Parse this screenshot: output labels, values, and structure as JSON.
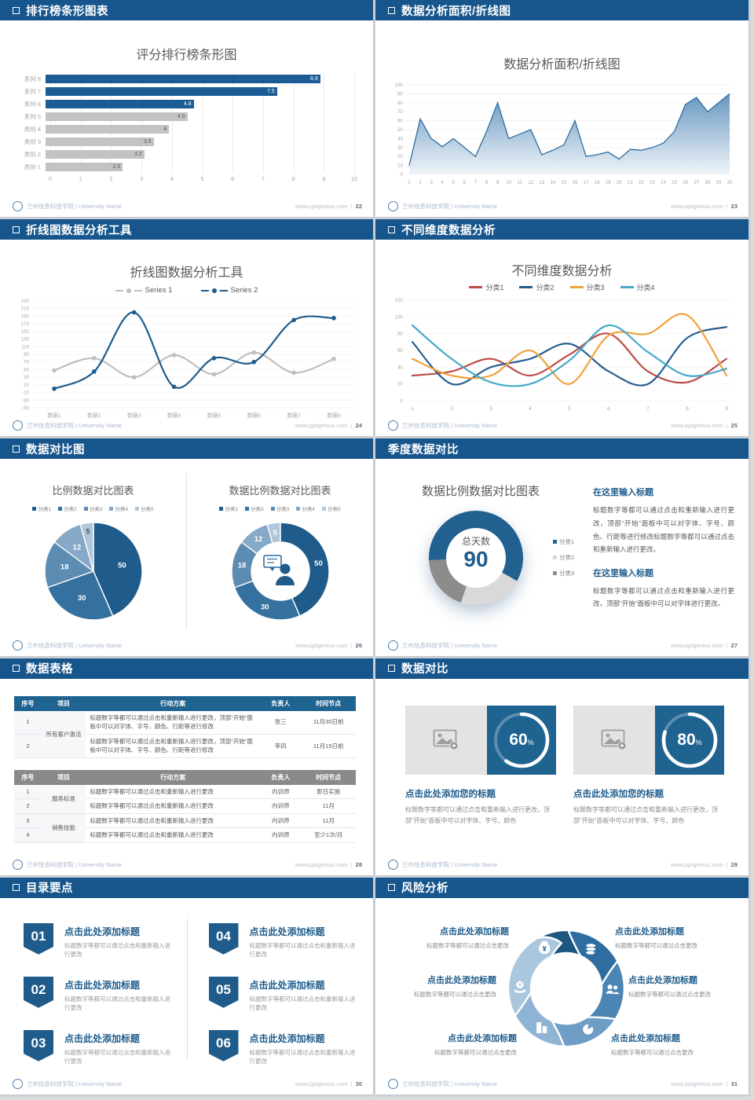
{
  "footer": {
    "brand": "兰州信息科技学院 | University Name",
    "site": "www.pptgenius.com"
  },
  "chart_data": [
    {
      "type": "bar",
      "title": "评分排行榜条形图",
      "categories": [
        "系列 8",
        "系列 7",
        "系列 6",
        "系列 5",
        "类别 4",
        "类别 3",
        "类别 2",
        "类别 1"
      ],
      "values": [
        8.9,
        7.5,
        4.8,
        4.6,
        4,
        3.5,
        3.2,
        2.5
      ],
      "bar_colors": [
        "#1B5C94",
        "#1B5C94",
        "#1B5C94",
        "#C3C3C3",
        "#C3C3C3",
        "#C3C3C3",
        "#C3C3C3",
        "#C3C3C3"
      ],
      "value_colors": [
        "#FFFFFF",
        "#FFFFFF",
        "#FFFFFF",
        "#595959",
        "#595959",
        "#595959",
        "#595959",
        "#595959"
      ],
      "xlim": [
        0,
        10
      ],
      "x_ticks": [
        0,
        1,
        2,
        3,
        4,
        5,
        6,
        7,
        8,
        9,
        10
      ],
      "grid": true
    },
    {
      "type": "area",
      "title": "数据分析面积/折线图",
      "x": [
        1,
        2,
        3,
        4,
        5,
        6,
        7,
        8,
        9,
        10,
        11,
        12,
        13,
        14,
        15,
        16,
        17,
        18,
        19,
        20,
        21,
        22,
        23,
        24,
        25,
        26,
        27,
        28,
        29,
        30
      ],
      "values": [
        10,
        62,
        40,
        31,
        40,
        30,
        20,
        48,
        80,
        40,
        45,
        50,
        22,
        27,
        33,
        60,
        20,
        22,
        25,
        17,
        28,
        27,
        30,
        35,
        48,
        78,
        86,
        70,
        80,
        90
      ],
      "ylim": [
        0,
        100
      ],
      "y_step": 10,
      "line_color": "#2E6DA0",
      "fill_top": "#5E90BC",
      "fill_bottom": "#EDF3F8"
    },
    {
      "type": "line",
      "title": "折线图数据分析工具",
      "categories": [
        "数据1",
        "数据2",
        "数据3",
        "数据4",
        "数据5",
        "数据6",
        "数据7",
        "数据8"
      ],
      "series": [
        {
          "name": "Series 1",
          "color": "#BFBFBF",
          "values": [
            48,
            80,
            30,
            88,
            38,
            95,
            42,
            78
          ]
        },
        {
          "name": "Series 2",
          "color": "#1F5C8B",
          "values": [
            0,
            45,
            200,
            5,
            80,
            70,
            180,
            185
          ]
        }
      ],
      "ylim": [
        -50,
        230
      ],
      "y_step": 20,
      "markers": true,
      "legend_position": "top"
    },
    {
      "type": "line",
      "title": "不同维度数据分析",
      "x": [
        1,
        2,
        3,
        4,
        5,
        6,
        7,
        8,
        9
      ],
      "series": [
        {
          "name": "分类1",
          "color": "#BE4B48",
          "values": [
            30,
            35,
            50,
            30,
            55,
            80,
            35,
            22,
            50
          ]
        },
        {
          "name": "分类2",
          "color": "#275E8E",
          "values": [
            70,
            20,
            40,
            50,
            68,
            35,
            20,
            75,
            88
          ]
        },
        {
          "name": "分类3",
          "color": "#F0A23C",
          "values": [
            50,
            30,
            30,
            60,
            20,
            78,
            80,
            102,
            30
          ]
        },
        {
          "name": "分类4",
          "color": "#45A9C9",
          "values": [
            90,
            50,
            22,
            20,
            48,
            90,
            58,
            30,
            38
          ]
        }
      ],
      "ylim": [
        0,
        120
      ],
      "y_step": 20,
      "markers": false,
      "legend_position": "top"
    },
    {
      "type": "pie",
      "title": "比例数据对比图表",
      "labels": [
        "分类1",
        "分类2",
        "分类3",
        "分类4",
        "分类5"
      ],
      "values": [
        50,
        30,
        18,
        12,
        5
      ],
      "colors": [
        "#1F5C8B",
        "#35719F",
        "#5D8CB3",
        "#86A9C7",
        "#B0C7DB"
      ]
    },
    {
      "type": "donut",
      "title": "数据比例数据对比图表",
      "labels": [
        "分类1",
        "分类2",
        "分类3",
        "分类4",
        "分类5"
      ],
      "values": [
        50,
        30,
        18,
        12,
        5
      ],
      "colors": [
        "#1F5C8B",
        "#35719F",
        "#5D8CB3",
        "#86A9C7",
        "#B0C7DB"
      ],
      "center_icon": "person-with-speech-bubble"
    },
    {
      "type": "donut",
      "title": "数据比例数据对比图表",
      "center_label": "总天数",
      "center_value": "90",
      "start_angle": 267,
      "segments": [
        {
          "label": "分类1",
          "pct": 59,
          "color": "#21618F"
        },
        {
          "label": "分类2",
          "pct": 22,
          "color": "#D9D9D9"
        },
        {
          "label": "分类3",
          "pct": 19,
          "color": "#8C8C8C"
        }
      ]
    }
  ],
  "slides": {
    "bar": {
      "header": "排行榜条形图表",
      "page": "22"
    },
    "area": {
      "header": "数据分析面积/折线图",
      "page": "23"
    },
    "line2": {
      "header": "折线图数据分析工具",
      "page": "24"
    },
    "line4": {
      "header": "不同维度数据分析",
      "page": "25"
    },
    "pies": {
      "header": "数据对比图",
      "page": "26"
    },
    "donut": {
      "header": "季度数据对比",
      "page": "27",
      "blocks": [
        {
          "heading": "在这里输入标题",
          "body": "标题数字等都可以通过点击和重新输入进行更改，顶部“开始”面板中可以对字体、字号、颜色、行距等进行修改标题数字等都可以通过点击和重新输入进行更改。"
        },
        {
          "heading": "在这里输入标题",
          "body": "标题数字等都可以通过点击和重新输入进行更改，顶部“开始”面板中可以对字体进行更改。"
        }
      ]
    },
    "tables": {
      "header": "数据表格",
      "page": "28",
      "columns": [
        "序号",
        "项目",
        "行动方案",
        "负责人",
        "时间节点"
      ],
      "table1": {
        "header_color": "#1F6391",
        "rows": [
          {
            "no": "1",
            "item": "所有客户激活",
            "span": 2,
            "plan": "标题数字等都可以通过点击和重新输入进行更改，顶部“开始”面板中可以对字体、字号、颜色、行距等进行修改",
            "owner": "张三",
            "time": "11月30日前"
          },
          {
            "no": "2",
            "plan": "标题数字等都可以通过点击和重新输入进行更改，顶部“开始”面板中可以对字体、字号、颜色、行距等进行修改",
            "owner": "李四",
            "time": "11月15日前"
          }
        ]
      },
      "table2": {
        "header_color": "#8A8A8A",
        "rows": [
          {
            "no": "1",
            "item": "服务标准",
            "span": 2,
            "plan": "标题数字等都可以通过点击和重新输入进行更改",
            "owner": "内训师",
            "time": "即日实施"
          },
          {
            "no": "2",
            "plan": "标题数字等都可以通过点击和重新输入进行更改",
            "owner": "内训师",
            "time": "11月"
          },
          {
            "no": "3",
            "item": "销售技能",
            "span": 2,
            "plan": "标题数字等都可以通过点击和重新输入进行更改",
            "owner": "内训师",
            "time": "11月"
          },
          {
            "no": "4",
            "plan": "标题数字等都可以通过点击和重新输入进行更改",
            "owner": "内训师",
            "time": "至少1次/月"
          }
        ]
      }
    },
    "progress": {
      "header": "数据对比",
      "page": "29",
      "percent_suffix": "%",
      "cards": [
        {
          "percent": 60,
          "title": "点击此处添加您的标题",
          "body": "标题数字等都可以通过点击和重新输入进行更改，顶部“开始”面板中可以对字体、字号、颜色"
        },
        {
          "percent": 80,
          "title": "点击此处添加您的标题",
          "body": "标题数字等都可以通过点击和重新输入进行更改，顶部“开始”面板中可以对字体、字号、颜色"
        }
      ]
    },
    "toc": {
      "header": "目录要点",
      "page": "30",
      "items": [
        {
          "num": "01",
          "title": "点击此处添加标题",
          "sub": "标题数字等都可以通过点击和重新输入进行更改"
        },
        {
          "num": "02",
          "title": "点击此处添加标题",
          "sub": "标题数字等都可以通过点击和重新输入进行更改"
        },
        {
          "num": "03",
          "title": "点击此处添加标题",
          "sub": "标题数字等都可以通过点击和重新输入进行更改"
        },
        {
          "num": "04",
          "title": "点击此处添加标题",
          "sub": "标题数字等都可以通过点击和重新输入进行更改"
        },
        {
          "num": "05",
          "title": "点击此处添加标题",
          "sub": "标题数字等都可以通过点击和重新输入进行更改"
        },
        {
          "num": "06",
          "title": "点击此处添加标题",
          "sub": "标题数字等都可以通过点击和重新输入进行更改"
        }
      ]
    },
    "risk": {
      "header": "风险分析",
      "page": "31",
      "wheel_colors": [
        "#1D567E",
        "#2F6DA0",
        "#4A85B4",
        "#6E9DC5",
        "#8FB4D3",
        "#ABC7DE"
      ],
      "wheel_icons": [
        "money-bag-icon",
        "coins-icon",
        "people-icon",
        "pie-chart-icon",
        "building-icon",
        "cash-hand-icon"
      ],
      "blocks": [
        {
          "title": "点击此处添加标题",
          "sub": "标题数字等都可以通过点击更改"
        },
        {
          "title": "点击此处添加标题",
          "sub": "标题数字等都可以通过点击更改"
        },
        {
          "title": "点击此处添加标题",
          "sub": "标题数字等都可以通过点击更改"
        },
        {
          "title": "点击此处添加标题",
          "sub": "标题数字等都可以通过点击更改"
        },
        {
          "title": "点击此处添加标题",
          "sub": "标题数字等都可以通过点击更改"
        },
        {
          "title": "点击此处添加标题",
          "sub": "标题数字等都可以通过点击更改"
        }
      ]
    }
  }
}
